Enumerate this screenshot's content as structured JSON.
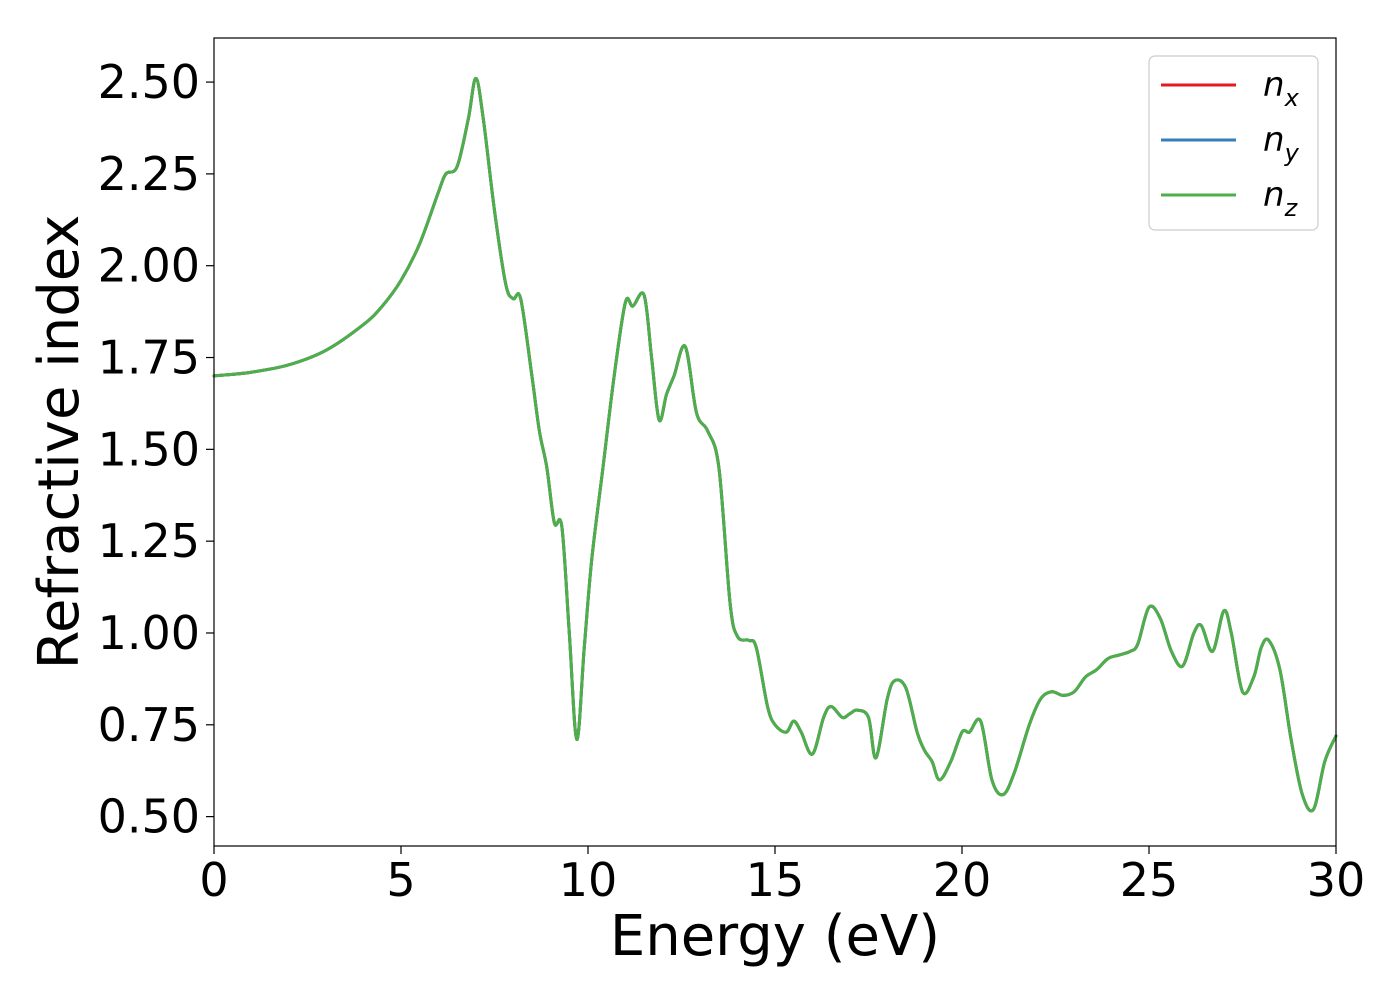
{
  "chart_data": {
    "type": "line",
    "xlabel": "Energy (eV)",
    "ylabel": "Refractive index",
    "xlim": [
      0,
      30
    ],
    "ylim": [
      0.42,
      2.62
    ],
    "xticks": [
      0,
      5,
      10,
      15,
      20,
      25,
      30
    ],
    "xtick_labels": [
      "0",
      "5",
      "10",
      "15",
      "20",
      "25",
      "30"
    ],
    "yticks": [
      0.5,
      0.75,
      1.0,
      1.25,
      1.5,
      1.75,
      2.0,
      2.25,
      2.5
    ],
    "ytick_labels": [
      "0.50",
      "0.75",
      "1.00",
      "1.25",
      "1.50",
      "1.75",
      "2.00",
      "2.25",
      "2.50"
    ],
    "grid": false,
    "legend_position": "top-right",
    "series": [
      {
        "name": "n_x",
        "label_base": "n",
        "label_sub": "x",
        "color": "#e41a1c",
        "x": [
          0,
          1,
          2,
          3,
          4,
          4.5,
          5,
          5.5,
          6,
          6.2,
          6.5,
          6.8,
          7,
          7.2,
          7.5,
          7.8,
          8,
          8.2,
          8.5,
          8.7,
          8.9,
          9.1,
          9.3,
          9.5,
          9.7,
          9.9,
          10.1,
          10.4,
          10.7,
          11,
          11.2,
          11.5,
          11.7,
          11.9,
          12.1,
          12.3,
          12.6,
          12.9,
          13.2,
          13.5,
          13.8,
          14,
          14.3,
          14.5,
          14.8,
          15,
          15.3,
          15.5,
          15.7,
          16,
          16.3,
          16.5,
          16.8,
          17,
          17.2,
          17.5,
          17.7,
          18,
          18.2,
          18.5,
          18.8,
          19,
          19.2,
          19.4,
          19.7,
          20,
          20.2,
          20.5,
          20.8,
          21.1,
          21.4,
          21.8,
          22.1,
          22.4,
          22.7,
          23,
          23.3,
          23.6,
          23.9,
          24.2,
          24.5,
          24.7,
          25,
          25.3,
          25.6,
          25.9,
          26.2,
          26.4,
          26.7,
          27,
          27.2,
          27.5,
          27.8,
          28,
          28.2,
          28.5,
          28.8,
          29.1,
          29.4,
          29.7,
          30
        ],
        "y": [
          1.7,
          1.71,
          1.73,
          1.77,
          1.84,
          1.89,
          1.96,
          2.06,
          2.2,
          2.25,
          2.27,
          2.4,
          2.51,
          2.4,
          2.15,
          1.95,
          1.91,
          1.91,
          1.7,
          1.55,
          1.45,
          1.3,
          1.29,
          1.0,
          0.71,
          0.96,
          1.2,
          1.45,
          1.7,
          1.9,
          1.89,
          1.92,
          1.75,
          1.58,
          1.65,
          1.7,
          1.78,
          1.6,
          1.55,
          1.45,
          1.08,
          0.99,
          0.98,
          0.96,
          0.8,
          0.75,
          0.73,
          0.76,
          0.73,
          0.67,
          0.77,
          0.8,
          0.77,
          0.78,
          0.79,
          0.77,
          0.66,
          0.82,
          0.87,
          0.85,
          0.73,
          0.68,
          0.65,
          0.6,
          0.65,
          0.73,
          0.73,
          0.76,
          0.6,
          0.56,
          0.62,
          0.75,
          0.82,
          0.84,
          0.83,
          0.84,
          0.88,
          0.9,
          0.93,
          0.94,
          0.95,
          0.97,
          1.07,
          1.04,
          0.95,
          0.91,
          1.0,
          1.02,
          0.95,
          1.06,
          1.0,
          0.84,
          0.88,
          0.96,
          0.98,
          0.9,
          0.71,
          0.56,
          0.52,
          0.65,
          0.72
        ]
      },
      {
        "name": "n_y",
        "label_base": "n",
        "label_sub": "y",
        "color": "#377eb8",
        "x": [
          0,
          1,
          2,
          3,
          4,
          4.5,
          5,
          5.5,
          6,
          6.2,
          6.5,
          6.8,
          7,
          7.2,
          7.5,
          7.8,
          8,
          8.2,
          8.5,
          8.7,
          8.9,
          9.1,
          9.3,
          9.5,
          9.7,
          9.9,
          10.1,
          10.4,
          10.7,
          11,
          11.2,
          11.5,
          11.7,
          11.9,
          12.1,
          12.3,
          12.6,
          12.9,
          13.2,
          13.5,
          13.8,
          14,
          14.3,
          14.5,
          14.8,
          15,
          15.3,
          15.5,
          15.7,
          16,
          16.3,
          16.5,
          16.8,
          17,
          17.2,
          17.5,
          17.7,
          18,
          18.2,
          18.5,
          18.8,
          19,
          19.2,
          19.4,
          19.7,
          20,
          20.2,
          20.5,
          20.8,
          21.1,
          21.4,
          21.8,
          22.1,
          22.4,
          22.7,
          23,
          23.3,
          23.6,
          23.9,
          24.2,
          24.5,
          24.7,
          25,
          25.3,
          25.6,
          25.9,
          26.2,
          26.4,
          26.7,
          27,
          27.2,
          27.5,
          27.8,
          28,
          28.2,
          28.5,
          28.8,
          29.1,
          29.4,
          29.7,
          30
        ],
        "y": [
          1.7,
          1.71,
          1.73,
          1.77,
          1.84,
          1.89,
          1.96,
          2.06,
          2.2,
          2.25,
          2.27,
          2.4,
          2.51,
          2.4,
          2.15,
          1.95,
          1.91,
          1.91,
          1.7,
          1.55,
          1.45,
          1.3,
          1.29,
          1.0,
          0.71,
          0.96,
          1.2,
          1.45,
          1.7,
          1.9,
          1.89,
          1.92,
          1.75,
          1.58,
          1.65,
          1.7,
          1.78,
          1.6,
          1.55,
          1.45,
          1.08,
          0.99,
          0.98,
          0.96,
          0.8,
          0.75,
          0.73,
          0.76,
          0.73,
          0.67,
          0.77,
          0.8,
          0.77,
          0.78,
          0.79,
          0.77,
          0.66,
          0.82,
          0.87,
          0.85,
          0.73,
          0.68,
          0.65,
          0.6,
          0.65,
          0.73,
          0.73,
          0.76,
          0.6,
          0.56,
          0.62,
          0.75,
          0.82,
          0.84,
          0.83,
          0.84,
          0.88,
          0.9,
          0.93,
          0.94,
          0.95,
          0.97,
          1.07,
          1.04,
          0.95,
          0.91,
          1.0,
          1.02,
          0.95,
          1.06,
          1.0,
          0.84,
          0.88,
          0.96,
          0.98,
          0.9,
          0.71,
          0.56,
          0.52,
          0.65,
          0.72
        ]
      },
      {
        "name": "n_z",
        "label_base": "n",
        "label_sub": "z",
        "color": "#4daf4a",
        "x": [
          0,
          1,
          2,
          3,
          4,
          4.5,
          5,
          5.5,
          6,
          6.2,
          6.5,
          6.8,
          7,
          7.2,
          7.5,
          7.8,
          8,
          8.2,
          8.5,
          8.7,
          8.9,
          9.1,
          9.3,
          9.5,
          9.7,
          9.9,
          10.1,
          10.4,
          10.7,
          11,
          11.2,
          11.5,
          11.7,
          11.9,
          12.1,
          12.3,
          12.6,
          12.9,
          13.2,
          13.5,
          13.8,
          14,
          14.3,
          14.5,
          14.8,
          15,
          15.3,
          15.5,
          15.7,
          16,
          16.3,
          16.5,
          16.8,
          17,
          17.2,
          17.5,
          17.7,
          18,
          18.2,
          18.5,
          18.8,
          19,
          19.2,
          19.4,
          19.7,
          20,
          20.2,
          20.5,
          20.8,
          21.1,
          21.4,
          21.8,
          22.1,
          22.4,
          22.7,
          23,
          23.3,
          23.6,
          23.9,
          24.2,
          24.5,
          24.7,
          25,
          25.3,
          25.6,
          25.9,
          26.2,
          26.4,
          26.7,
          27,
          27.2,
          27.5,
          27.8,
          28,
          28.2,
          28.5,
          28.8,
          29.1,
          29.4,
          29.7,
          30
        ],
        "y": [
          1.7,
          1.71,
          1.73,
          1.77,
          1.84,
          1.89,
          1.96,
          2.06,
          2.2,
          2.25,
          2.27,
          2.4,
          2.51,
          2.4,
          2.15,
          1.95,
          1.91,
          1.91,
          1.7,
          1.55,
          1.45,
          1.3,
          1.29,
          1.0,
          0.71,
          0.96,
          1.2,
          1.45,
          1.7,
          1.9,
          1.89,
          1.92,
          1.75,
          1.58,
          1.65,
          1.7,
          1.78,
          1.6,
          1.55,
          1.45,
          1.08,
          0.99,
          0.98,
          0.96,
          0.8,
          0.75,
          0.73,
          0.76,
          0.73,
          0.67,
          0.77,
          0.8,
          0.77,
          0.78,
          0.79,
          0.77,
          0.66,
          0.82,
          0.87,
          0.85,
          0.73,
          0.68,
          0.65,
          0.6,
          0.65,
          0.73,
          0.73,
          0.76,
          0.6,
          0.56,
          0.62,
          0.75,
          0.82,
          0.84,
          0.83,
          0.84,
          0.88,
          0.9,
          0.93,
          0.94,
          0.95,
          0.97,
          1.07,
          1.04,
          0.95,
          0.91,
          1.0,
          1.02,
          0.95,
          1.06,
          1.0,
          0.84,
          0.88,
          0.96,
          0.98,
          0.9,
          0.71,
          0.56,
          0.52,
          0.65,
          0.72
        ]
      }
    ]
  }
}
